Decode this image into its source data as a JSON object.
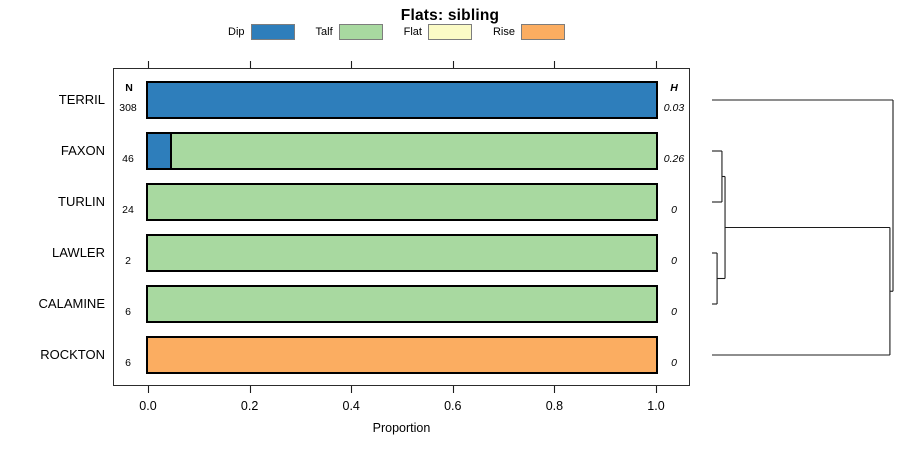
{
  "title": "Flats: sibling",
  "xlabel": "Proportion",
  "columns": {
    "n_header": "N",
    "h_header": "H"
  },
  "chart_data": {
    "type": "bar",
    "orientation": "horizontal",
    "stacked": true,
    "title": "Flats: sibling",
    "xlabel": "Proportion",
    "xlim": [
      0,
      1
    ],
    "x_tick_values": [
      0.0,
      0.2,
      0.4,
      0.6,
      0.8,
      1.0
    ],
    "x_tick_labels": [
      "0.0",
      "0.2",
      "0.4",
      "0.6",
      "0.8",
      "1.0"
    ],
    "grid": false,
    "legend_position": "top",
    "legend": [
      {
        "label": "Dip",
        "color": "#2E7EBB"
      },
      {
        "label": "Talf",
        "color": "#A8D9A0"
      },
      {
        "label": "Flat",
        "color": "#FBFBC6"
      },
      {
        "label": "Rise",
        "color": "#FBAD61"
      }
    ],
    "categories": [
      "TERRIL",
      "FAXON",
      "TURLIN",
      "LAWLER",
      "CALAMINE",
      "ROCKTON"
    ],
    "rows": [
      {
        "name": "TERRIL",
        "n": "308",
        "h": "0.03",
        "segments": [
          {
            "series": "Dip",
            "value": 1.0
          }
        ]
      },
      {
        "name": "FAXON",
        "n": "46",
        "h": "0.26",
        "segments": [
          {
            "series": "Dip",
            "value": 0.043
          },
          {
            "series": "Talf",
            "value": 0.957
          }
        ]
      },
      {
        "name": "TURLIN",
        "n": "24",
        "h": "0",
        "segments": [
          {
            "series": "Talf",
            "value": 1.0
          }
        ]
      },
      {
        "name": "LAWLER",
        "n": "2",
        "h": "0",
        "segments": [
          {
            "series": "Talf",
            "value": 1.0
          }
        ]
      },
      {
        "name": "CALAMINE",
        "n": "6",
        "h": "0",
        "segments": [
          {
            "series": "Talf",
            "value": 1.0
          }
        ]
      },
      {
        "name": "ROCKTON",
        "n": "6",
        "h": "0",
        "segments": [
          {
            "series": "Rise",
            "value": 1.0
          }
        ]
      }
    ],
    "dendrogram": {
      "note": "right-side cluster tree, heights relative 0-1",
      "merges": [
        {
          "children": [
            "FAXON",
            "TURLIN"
          ],
          "height": 0.055
        },
        {
          "children": [
            "LAWLER",
            "CALAMINE"
          ],
          "height": 0.028
        },
        {
          "children": [
            "#0",
            "#1"
          ],
          "height": 0.072
        },
        {
          "children": [
            "#2",
            "ROCKTON"
          ],
          "height": 0.983
        },
        {
          "children": [
            "#3",
            "TERRIL"
          ],
          "height": 1.0
        }
      ]
    }
  }
}
